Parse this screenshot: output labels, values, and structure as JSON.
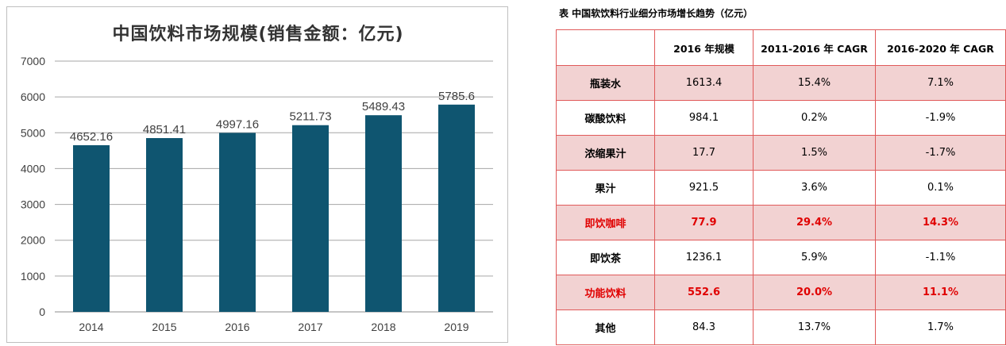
{
  "chart_data": {
    "type": "bar",
    "title": "中国饮料市场规模(销售金额：亿元)",
    "categories": [
      "2014",
      "2015",
      "2016",
      "2017",
      "2018",
      "2019"
    ],
    "values": [
      4652.16,
      4851.41,
      4997.16,
      5211.73,
      5489.43,
      5785.6
    ],
    "value_labels": [
      "4652.16",
      "4851.41",
      "4997.16",
      "5211.73",
      "5489.43",
      "5785.6"
    ],
    "ylim": [
      0,
      7000
    ],
    "yticks": [
      "0",
      "1000",
      "2000",
      "3000",
      "4000",
      "5000",
      "6000",
      "7000"
    ],
    "xlabel": "",
    "ylabel": "",
    "grid": true,
    "bar_color": "#0f5570"
  },
  "table": {
    "caption": "表  中国软饮料行业细分市场增长趋势（亿元）",
    "headers": [
      "",
      "2016 年规模",
      "2011-2016 年 CAGR",
      "2016-2020 年 CAGR"
    ],
    "rows": [
      {
        "cat": "瓶装水",
        "size": "1613.4",
        "cagr1": "15.4%",
        "cagr2": "7.1%"
      },
      {
        "cat": "碳酸饮料",
        "size": "984.1",
        "cagr1": "0.2%",
        "cagr2": "-1.9%"
      },
      {
        "cat": "浓缩果汁",
        "size": "17.7",
        "cagr1": "1.5%",
        "cagr2": "-1.7%"
      },
      {
        "cat": "果汁",
        "size": "921.5",
        "cagr1": "3.6%",
        "cagr2": "0.1%"
      },
      {
        "cat": "即饮咖啡",
        "size": "77.9",
        "cagr1": "29.4%",
        "cagr2": "14.3%"
      },
      {
        "cat": "即饮茶",
        "size": "1236.1",
        "cagr1": "5.9%",
        "cagr2": "-1.1%"
      },
      {
        "cat": "功能饮料",
        "size": "552.6",
        "cagr1": "20.0%",
        "cagr2": "11.1%"
      },
      {
        "cat": "其他",
        "size": "84.3",
        "cagr1": "13.7%",
        "cagr2": "1.7%"
      }
    ],
    "shade_color": "#f2d2d2",
    "highlight_color": "#e00000"
  }
}
